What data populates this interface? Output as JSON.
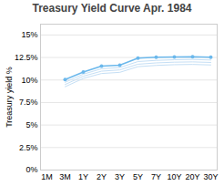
{
  "chart_data": {
    "type": "line",
    "title": "Treasury Yield Curve Apr. 1984",
    "categories": [
      "1M",
      "3M",
      "1Y",
      "2Y",
      "3Y",
      "5Y",
      "7Y",
      "10Y",
      "20Y",
      "30Y"
    ],
    "series": [
      {
        "color": "#C5DFF5",
        "values": [
          null,
          9.75,
          10.65,
          11.25,
          11.38,
          12.05,
          12.18,
          12.25,
          12.28,
          12.22
        ]
      },
      {
        "color": "#C5DFF5",
        "values": [
          null,
          9.5,
          10.42,
          10.98,
          11.12,
          11.75,
          11.9,
          11.98,
          12.01,
          11.95
        ]
      },
      {
        "color": "#C5DFF5",
        "values": [
          null,
          9.25,
          10.18,
          10.72,
          10.85,
          11.48,
          11.62,
          11.7,
          11.73,
          11.67
        ]
      },
      {
        "color": "#6BB8EC",
        "marker": "circle",
        "values": [
          null,
          10.05,
          10.88,
          11.55,
          11.65,
          12.43,
          12.52,
          12.55,
          12.57,
          12.52
        ]
      }
    ],
    "ylabel": "Treasury yield %",
    "ylim": [
      0,
      16.2
    ],
    "yticks": [
      {
        "value": 0,
        "label": "0%"
      },
      {
        "value": 2.5,
        "label": "2.5%"
      },
      {
        "value": 5,
        "label": "5%"
      },
      {
        "value": 7.5,
        "label": "7.5%"
      },
      {
        "value": 10,
        "label": "10%"
      },
      {
        "value": 12.5,
        "label": "12.5%"
      },
      {
        "value": 15,
        "label": "15%"
      }
    ],
    "grid": true
  }
}
